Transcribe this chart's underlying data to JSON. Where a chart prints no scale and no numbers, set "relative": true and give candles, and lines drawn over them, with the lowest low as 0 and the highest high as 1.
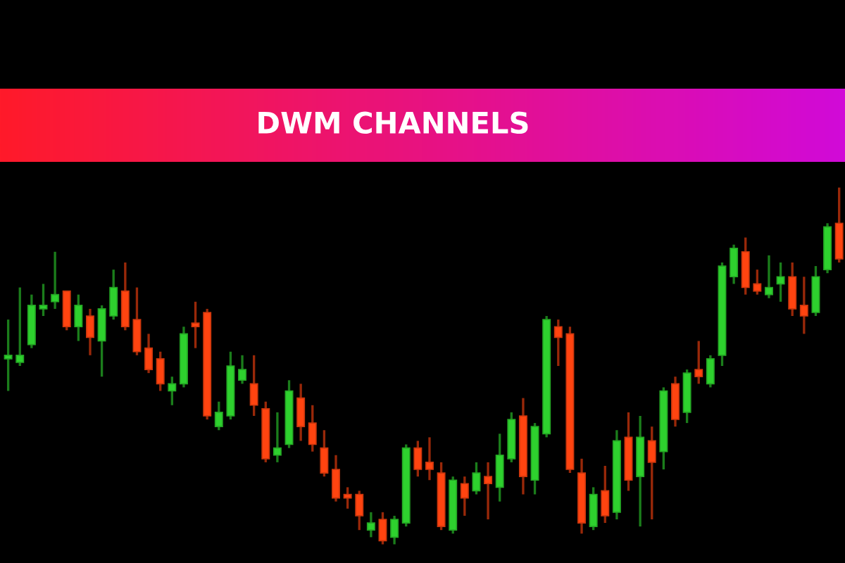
{
  "chart_data": {
    "type": "candlestick",
    "title": "DWM CHANNELS",
    "relative": true,
    "categories": [
      null,
      null,
      null,
      null,
      null,
      null,
      null,
      null,
      null,
      null,
      null,
      null,
      null,
      null,
      null,
      null,
      null,
      null,
      null,
      null,
      null,
      null,
      null,
      null,
      null,
      null,
      null,
      null,
      null,
      null,
      null,
      null,
      null,
      null,
      null,
      null,
      null,
      null,
      null,
      null,
      null,
      null,
      null,
      null,
      null,
      null,
      null,
      null,
      null,
      null,
      null,
      null,
      null,
      null,
      null,
      null,
      null,
      null,
      null,
      null,
      null,
      null,
      null,
      null,
      null,
      null,
      null,
      null,
      null,
      null,
      null,
      null
    ],
    "ohlc": [
      [
        0.52,
        0.63,
        0.43,
        0.53
      ],
      [
        0.51,
        0.72,
        0.5,
        0.53
      ],
      [
        0.56,
        0.7,
        0.55,
        0.67
      ],
      [
        0.66,
        0.73,
        0.64,
        0.67
      ],
      [
        0.68,
        0.82,
        0.66,
        0.7
      ],
      [
        0.71,
        0.71,
        0.6,
        0.61
      ],
      [
        0.61,
        0.7,
        0.57,
        0.67
      ],
      [
        0.64,
        0.66,
        0.53,
        0.58
      ],
      [
        0.57,
        0.67,
        0.47,
        0.66
      ],
      [
        0.64,
        0.77,
        0.63,
        0.72
      ],
      [
        0.71,
        0.79,
        0.6,
        0.61
      ],
      [
        0.63,
        0.72,
        0.53,
        0.54
      ],
      [
        0.55,
        0.59,
        0.48,
        0.49
      ],
      [
        0.52,
        0.54,
        0.43,
        0.45
      ],
      [
        0.43,
        0.47,
        0.39,
        0.45
      ],
      [
        0.45,
        0.61,
        0.44,
        0.59
      ],
      [
        0.62,
        0.68,
        0.55,
        0.61
      ],
      [
        0.65,
        0.66,
        0.35,
        0.36
      ],
      [
        0.33,
        0.4,
        0.32,
        0.37
      ],
      [
        0.36,
        0.54,
        0.35,
        0.5
      ],
      [
        0.46,
        0.53,
        0.45,
        0.49
      ],
      [
        0.45,
        0.53,
        0.36,
        0.39
      ],
      [
        0.38,
        0.4,
        0.23,
        0.24
      ],
      [
        0.25,
        0.37,
        0.23,
        0.27
      ],
      [
        0.28,
        0.46,
        0.27,
        0.43
      ],
      [
        0.41,
        0.45,
        0.29,
        0.33
      ],
      [
        0.34,
        0.39,
        0.26,
        0.28
      ],
      [
        0.27,
        0.32,
        0.19,
        0.2
      ],
      [
        0.21,
        0.25,
        0.12,
        0.13
      ],
      [
        0.14,
        0.16,
        0.1,
        0.13
      ],
      [
        0.14,
        0.15,
        0.04,
        0.08
      ],
      [
        0.04,
        0.09,
        0.02,
        0.06
      ],
      [
        0.07,
        0.09,
        0,
        0.01
      ],
      [
        0.02,
        0.08,
        0,
        0.07
      ],
      [
        0.06,
        0.28,
        0.05,
        0.27
      ],
      [
        0.27,
        0.29,
        0.19,
        0.21
      ],
      [
        0.23,
        0.3,
        0.18,
        0.21
      ],
      [
        0.2,
        0.23,
        0.04,
        0.05
      ],
      [
        0.04,
        0.19,
        0.03,
        0.18
      ],
      [
        0.17,
        0.19,
        0.08,
        0.13
      ],
      [
        0.15,
        0.23,
        0.14,
        0.2
      ],
      [
        0.19,
        0.23,
        0.07,
        0.17
      ],
      [
        0.16,
        0.31,
        0.12,
        0.25
      ],
      [
        0.24,
        0.37,
        0.23,
        0.35
      ],
      [
        0.36,
        0.41,
        0.14,
        0.19
      ],
      [
        0.18,
        0.34,
        0.14,
        0.33
      ],
      [
        0.31,
        0.64,
        0.3,
        0.63
      ],
      [
        0.61,
        0.63,
        0.5,
        0.58
      ],
      [
        0.59,
        0.61,
        0.2,
        0.21
      ],
      [
        0.2,
        0.24,
        0.03,
        0.06
      ],
      [
        0.05,
        0.16,
        0.04,
        0.14
      ],
      [
        0.15,
        0.22,
        0.06,
        0.08
      ],
      [
        0.09,
        0.32,
        0.07,
        0.29
      ],
      [
        0.3,
        0.37,
        0.15,
        0.18
      ],
      [
        0.19,
        0.36,
        0.05,
        0.3
      ],
      [
        0.29,
        0.33,
        0.07,
        0.23
      ],
      [
        0.26,
        0.44,
        0.21,
        0.43
      ],
      [
        0.45,
        0.47,
        0.33,
        0.35
      ],
      [
        0.37,
        0.49,
        0.34,
        0.48
      ],
      [
        0.49,
        0.57,
        0.45,
        0.47
      ],
      [
        0.45,
        0.53,
        0.44,
        0.52
      ],
      [
        0.53,
        0.79,
        0.5,
        0.78
      ],
      [
        0.75,
        0.84,
        0.73,
        0.83
      ],
      [
        0.82,
        0.86,
        0.7,
        0.72
      ],
      [
        0.73,
        0.77,
        0.7,
        0.71
      ],
      [
        0.7,
        0.81,
        0.69,
        0.72
      ],
      [
        0.73,
        0.79,
        0.68,
        0.75
      ],
      [
        0.75,
        0.79,
        0.64,
        0.66
      ],
      [
        0.67,
        0.75,
        0.59,
        0.64
      ],
      [
        0.65,
        0.78,
        0.64,
        0.75
      ],
      [
        0.77,
        0.9,
        0.76,
        0.89
      ],
      [
        0.9,
        1.0,
        0.79,
        0.8
      ]
    ],
    "colors": [
      "#2ed12e",
      "#2ed12e",
      "#2ed12e",
      "#2ed12e",
      "#2ed12e",
      "#ff4410",
      "#2ed12e",
      "#ff4410",
      "#2ed12e",
      "#2ed12e",
      "#ff4410",
      "#ff4410",
      "#ff4410",
      "#ff4410",
      "#2ed12e",
      "#2ed12e",
      "#ff4410",
      "#ff4410",
      "#2ed12e",
      "#2ed12e",
      "#2ed12e",
      "#ff4410",
      "#ff4410",
      "#2ed12e",
      "#2ed12e",
      "#ff4410",
      "#ff4410",
      "#ff4410",
      "#ff4410",
      "#ff4410",
      "#ff4410",
      "#2ed12e",
      "#ff4410",
      "#2ed12e",
      "#2ed12e",
      "#ff4410",
      "#ff4410",
      "#ff4410",
      "#2ed12e",
      "#ff4410",
      "#2ed12e",
      "#ff4410",
      "#2ed12e",
      "#2ed12e",
      "#ff4410",
      "#2ed12e",
      "#2ed12e",
      "#ff4410",
      "#ff4410",
      "#ff4410",
      "#2ed12e",
      "#ff4410",
      "#2ed12e",
      "#ff4410",
      "#2ed12e",
      "#ff4410",
      "#2ed12e",
      "#ff4410",
      "#2ed12e",
      "#ff4410",
      "#2ed12e",
      "#2ed12e",
      "#2ed12e",
      "#ff4410",
      "#ff4410",
      "#2ed12e",
      "#2ed12e",
      "#ff4410",
      "#ff4410",
      "#2ed12e",
      "#2ed12e",
      "#ff4410"
    ]
  }
}
